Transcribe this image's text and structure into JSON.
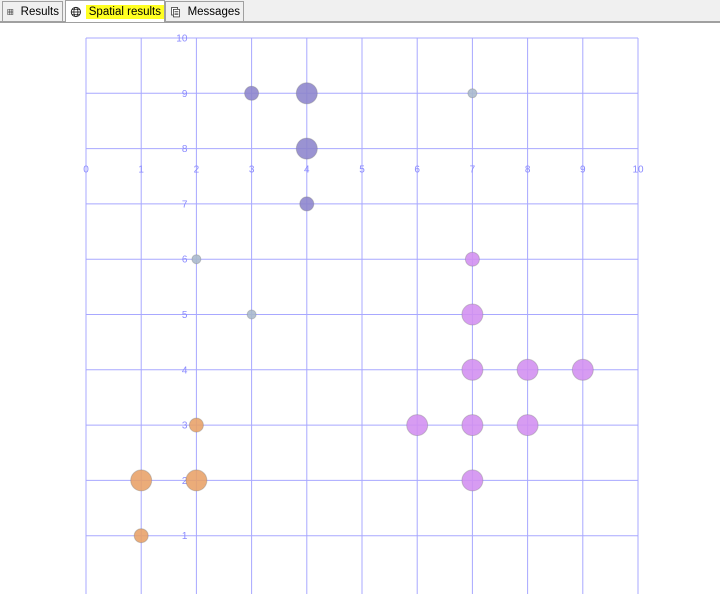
{
  "tabs": [
    {
      "label": "Results",
      "icon": "grid-icon",
      "active": false
    },
    {
      "label": "Spatial results",
      "icon": "globe-icon",
      "active": true
    },
    {
      "label": "Messages",
      "icon": "messages-icon",
      "active": false
    }
  ],
  "colors": {
    "highlight": "#ffff22",
    "axis": "#8a8aff",
    "grid": "#a8a8ff"
  },
  "chart_data": {
    "type": "scatter",
    "xlim": [
      0,
      10
    ],
    "ylim": [
      0,
      10
    ],
    "x_ticks": [
      "0",
      "1",
      "2",
      "3",
      "4",
      "5",
      "6",
      "7",
      "8",
      "9",
      "10"
    ],
    "y_ticks": [
      "1",
      "2",
      "3",
      "4",
      "5",
      "6",
      "7",
      "8",
      "9",
      "10"
    ],
    "grid": true,
    "series": [
      {
        "color": "#e8a066",
        "points": [
          {
            "x": 1,
            "y": 1,
            "size": "medium"
          },
          {
            "x": 1,
            "y": 2,
            "size": "large"
          },
          {
            "x": 2,
            "y": 2,
            "size": "large"
          },
          {
            "x": 2,
            "y": 3,
            "size": "medium"
          }
        ]
      },
      {
        "color": "#a8b8cc",
        "points": [
          {
            "x": 2,
            "y": 6,
            "size": "small"
          },
          {
            "x": 3,
            "y": 5,
            "size": "small"
          },
          {
            "x": 7,
            "y": 9,
            "size": "small"
          }
        ]
      },
      {
        "color": "#8c84cc",
        "points": [
          {
            "x": 3,
            "y": 9,
            "size": "medium"
          },
          {
            "x": 4,
            "y": 9,
            "size": "large"
          },
          {
            "x": 4,
            "y": 8,
            "size": "large"
          },
          {
            "x": 4,
            "y": 7,
            "size": "medium"
          }
        ]
      },
      {
        "color": "#d18ef0",
        "points": [
          {
            "x": 7,
            "y": 6,
            "size": "medium"
          },
          {
            "x": 7,
            "y": 5,
            "size": "large"
          },
          {
            "x": 7,
            "y": 4,
            "size": "large"
          },
          {
            "x": 8,
            "y": 4,
            "size": "large"
          },
          {
            "x": 9,
            "y": 4,
            "size": "large"
          },
          {
            "x": 6,
            "y": 3,
            "size": "large"
          },
          {
            "x": 7,
            "y": 3,
            "size": "large"
          },
          {
            "x": 8,
            "y": 3,
            "size": "large"
          },
          {
            "x": 7,
            "y": 2,
            "size": "large"
          }
        ]
      }
    ]
  }
}
